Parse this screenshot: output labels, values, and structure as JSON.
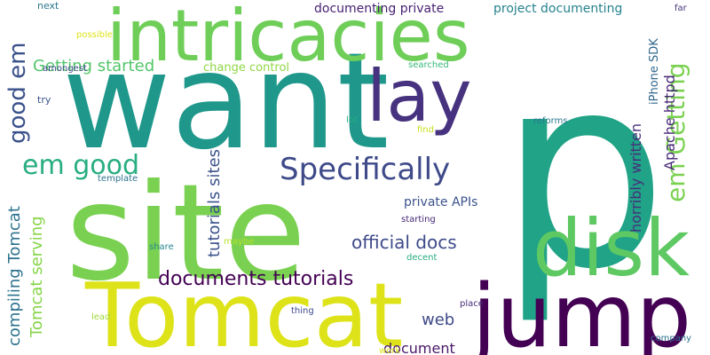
{
  "words": [
    {
      "text": "p",
      "color": "#20a386"
    },
    {
      "text": "want",
      "color": "#1f988b"
    },
    {
      "text": "site",
      "color": "#7ad151"
    },
    {
      "text": "Tomcat",
      "color": "#dde318"
    },
    {
      "text": "intricacies",
      "color": "#6ece58"
    },
    {
      "text": "jump",
      "color": "#440154"
    },
    {
      "text": "disk",
      "color": "#5ec962"
    },
    {
      "text": "lay",
      "color": "#46327e"
    },
    {
      "text": "Specifically",
      "color": "#3e4a89"
    },
    {
      "text": "em good",
      "color": "#28ae80"
    },
    {
      "text": "good em",
      "color": "#3b528b"
    },
    {
      "text": "em Getting",
      "color": "#7ad151"
    },
    {
      "text": "documents tutorials",
      "color": "#440154"
    },
    {
      "text": "official docs",
      "color": "#3e4a89"
    },
    {
      "text": "Getting started",
      "color": "#52c569"
    },
    {
      "text": "tutorials sites",
      "color": "#3b528b"
    },
    {
      "text": "compiling Tomcat",
      "color": "#2c728e"
    },
    {
      "text": "Tomcat serving",
      "color": "#86d549"
    },
    {
      "text": "Apache httpd",
      "color": "#482878"
    },
    {
      "text": "horribly written",
      "color": "#472d7b"
    },
    {
      "text": "documenting private",
      "color": "#482173"
    },
    {
      "text": "project documenting",
      "color": "#26828e"
    },
    {
      "text": "private APIs",
      "color": "#3b528b"
    },
    {
      "text": "document",
      "color": "#48186a"
    },
    {
      "text": "web",
      "color": "#3e4a89"
    },
    {
      "text": "iPhone SDK",
      "color": "#31688e"
    },
    {
      "text": "change control",
      "color": "#8fd744"
    },
    {
      "text": "next",
      "color": "#2a788e"
    },
    {
      "text": "possible",
      "color": "#dde318"
    },
    {
      "text": "amongest",
      "color": "#3e4a89"
    },
    {
      "text": "try",
      "color": "#3b528b"
    },
    {
      "text": "template",
      "color": "#2c728e"
    },
    {
      "text": "share",
      "color": "#25858e"
    },
    {
      "text": "maybe",
      "color": "#b5de2b"
    },
    {
      "text": "lead",
      "color": "#a0da39"
    },
    {
      "text": "searched",
      "color": "#35b779"
    },
    {
      "text": "lot",
      "color": "#25ab82"
    },
    {
      "text": "find",
      "color": "#c8e020"
    },
    {
      "text": "reforms",
      "color": "#2a788e"
    },
    {
      "text": "starting",
      "color": "#482878"
    },
    {
      "text": "decent",
      "color": "#25ab82"
    },
    {
      "text": "place",
      "color": "#472d7b"
    },
    {
      "text": "thing",
      "color": "#3e4a89"
    },
    {
      "text": "work",
      "color": "#dde318"
    },
    {
      "text": "company",
      "color": "#2c728e"
    },
    {
      "text": "far",
      "color": "#46327e"
    }
  ]
}
